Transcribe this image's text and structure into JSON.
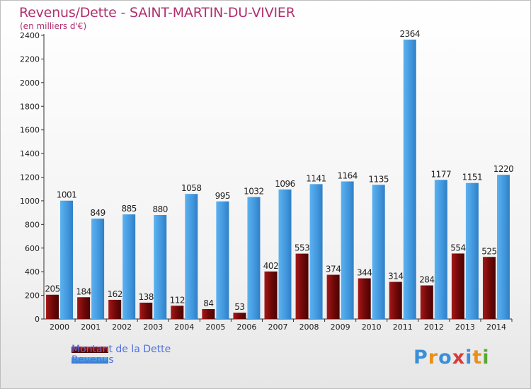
{
  "header": {
    "title": "Revenus/Dette - SAINT-MARTIN-DU-VIVIER",
    "subtitle": "(en milliers d'€)"
  },
  "chart_data": {
    "type": "bar",
    "categories": [
      "2000",
      "2001",
      "2002",
      "2003",
      "2004",
      "2005",
      "2006",
      "2007",
      "2008",
      "2009",
      "2010",
      "2011",
      "2012",
      "2013",
      "2014"
    ],
    "series": [
      {
        "name": "Montant de la Dette",
        "color": "#7a0a0a",
        "values": [
          205,
          184,
          162,
          138,
          112,
          84,
          53,
          402,
          553,
          374,
          344,
          314,
          284,
          554,
          525
        ]
      },
      {
        "name": "Revenus",
        "color": "#4aa3e8",
        "values": [
          1001,
          849,
          885,
          880,
          1058,
          995,
          1032,
          1096,
          1141,
          1164,
          1135,
          2364,
          1177,
          1151,
          1220
        ]
      }
    ],
    "ylim": [
      0,
      2400
    ],
    "yticks": [
      0,
      200,
      400,
      600,
      800,
      1000,
      1200,
      1400,
      1600,
      1800,
      2000,
      2200,
      2400
    ],
    "grid": false,
    "legend_position": "bottom-left"
  },
  "logo": {
    "text": "Proxiti",
    "letter_colors": [
      "#3a8fd8",
      "#e8901a",
      "#3a8fd8",
      "#d63a3a",
      "#3a8fd8",
      "#e8901a",
      "#5aa832"
    ]
  }
}
